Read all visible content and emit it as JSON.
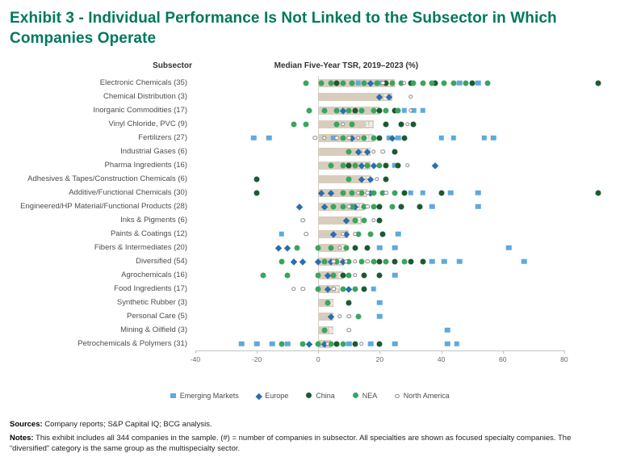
{
  "title": "Exhibit 3 - Individual Performance Is Not Linked to the Subsector in Which Companies Operate",
  "columns": {
    "subsector": "Subsector",
    "tsr": "Median Five-Year TSR, 2019–2023 (%)"
  },
  "colors": {
    "accent": "#00795C",
    "bar": "#D8CDBD",
    "axis": "#C4C4C4"
  },
  "chart_data": {
    "type": "scatter",
    "title": "Median Five-Year TSR, 2019–2023 (%)",
    "xlabel": "",
    "ylabel": "Subsector",
    "x_range": [
      -40,
      95
    ],
    "x_ticks": [
      -40,
      -20,
      0,
      20,
      40,
      60,
      80
    ],
    "grid": "zero-line-only",
    "legend_position": "bottom",
    "series_meta": [
      {
        "key": "em",
        "name": "Emerging Markets",
        "marker": "square",
        "color": "#5FA9DC"
      },
      {
        "key": "eu",
        "name": "Europe",
        "marker": "diamond",
        "color": "#2A6EAF"
      },
      {
        "key": "cn",
        "name": "China",
        "marker": "circle",
        "color": "#1C5A34"
      },
      {
        "key": "nea",
        "name": "NEA",
        "marker": "circle",
        "color": "#3AA55F"
      },
      {
        "key": "na",
        "name": "North America",
        "marker": "open-circle",
        "color": "#FFFFFF"
      }
    ],
    "rows": [
      {
        "label": "Electronic Chemicals (35)",
        "median": 25,
        "points": {
          "em": [
            13,
            20,
            46,
            52
          ],
          "eu": [
            17
          ],
          "cn": [
            6,
            22,
            30,
            38,
            50,
            91
          ],
          "nea": [
            -4,
            1,
            4,
            8,
            11,
            15,
            19,
            24,
            27,
            31,
            34,
            37,
            41,
            44,
            48,
            55
          ],
          "na": [
            21,
            28
          ]
        }
      },
      {
        "label": "Chemical Distribution (3)",
        "median": 24,
        "points": {
          "eu": [
            20,
            23
          ],
          "na": [
            30
          ]
        }
      },
      {
        "label": "Inorganic Commodities (17)",
        "median": 20,
        "points": {
          "em": [
            28,
            31,
            34
          ],
          "eu": [
            8
          ],
          "cn": [
            12,
            20,
            25
          ],
          "nea": [
            -3,
            2,
            6,
            10,
            14,
            18,
            22,
            26
          ],
          "na": [
            30
          ]
        }
      },
      {
        "label": "Vinyl Chloride, PVC (9)",
        "median": 18,
        "points": {
          "nea": [
            -8,
            -4,
            6,
            11
          ],
          "cn": [
            22,
            27,
            31
          ],
          "na": [
            8,
            29
          ]
        }
      },
      {
        "label": "Fertilizers (27)",
        "median": 18,
        "points": {
          "em": [
            -21,
            -16,
            5,
            23,
            26,
            40,
            44,
            54,
            57
          ],
          "eu": [
            11,
            24
          ],
          "cn": [
            20,
            28
          ],
          "nea": [
            8,
            15,
            18
          ],
          "na": [
            -1,
            2,
            6,
            10,
            13
          ]
        }
      },
      {
        "label": "Industrial Gases (6)",
        "median": 17,
        "points": {
          "eu": [
            13,
            16
          ],
          "cn": [
            25
          ],
          "nea": [
            10
          ],
          "na": [
            18,
            21
          ]
        }
      },
      {
        "label": "Pharma Ingredients (16)",
        "median": 17,
        "points": {
          "em": [
            25
          ],
          "eu": [
            14,
            18,
            38
          ],
          "cn": [
            10,
            22,
            26
          ],
          "nea": [
            4,
            8,
            12,
            16,
            20
          ],
          "na": [
            29
          ]
        }
      },
      {
        "label": "Adhesives & Tapes/Construction Chemicals (6)",
        "median": 17,
        "points": {
          "cn": [
            -20,
            22
          ],
          "eu": [
            14,
            17
          ],
          "nea": [
            10
          ],
          "na": [
            19
          ]
        }
      },
      {
        "label": "Additive/Functional Chemicals (30)",
        "median": 16,
        "points": {
          "em": [
            30,
            34,
            43,
            52
          ],
          "eu": [
            1,
            4,
            17
          ],
          "cn": [
            -20,
            28,
            40,
            91
          ],
          "nea": [
            8,
            11,
            14,
            18,
            21,
            25
          ],
          "na": [
            13,
            16,
            22
          ]
        }
      },
      {
        "label": "Engineered/HP Material/Functional Products (28)",
        "median": 15,
        "points": {
          "em": [
            37,
            52
          ],
          "eu": [
            -6,
            2,
            12
          ],
          "cn": [
            20,
            27,
            33
          ],
          "nea": [
            5,
            8,
            11,
            15,
            18,
            24
          ],
          "na": [
            10,
            16
          ]
        }
      },
      {
        "label": "Inks & Pigments (6)",
        "median": 14,
        "points": {
          "eu": [
            9
          ],
          "cn": [
            20
          ],
          "nea": [
            12,
            15
          ],
          "na": [
            -5,
            18
          ]
        }
      },
      {
        "label": "Paints & Coatings (12)",
        "median": 10,
        "points": {
          "em": [
            -12,
            26
          ],
          "eu": [
            5,
            9
          ],
          "cn": [
            21
          ],
          "nea": [
            13,
            17
          ],
          "na": [
            -4,
            8,
            12
          ]
        }
      },
      {
        "label": "Fibers & Intermediates (20)",
        "median": 9,
        "points": {
          "em": [
            20,
            25,
            62
          ],
          "eu": [
            -13,
            -10
          ],
          "cn": [
            12,
            16
          ],
          "nea": [
            -7,
            0,
            4,
            9
          ],
          "na": [
            7
          ]
        }
      },
      {
        "label": "Diversified (54)",
        "median": 8,
        "points": {
          "em": [
            37,
            41,
            46,
            67
          ],
          "eu": [
            -8,
            -5,
            0,
            4,
            8
          ],
          "cn": [
            20,
            25,
            30,
            34
          ],
          "nea": [
            -12,
            2,
            6,
            10,
            14,
            18,
            22,
            28
          ],
          "na": [
            5,
            9,
            12,
            16
          ]
        }
      },
      {
        "label": "Agrochemicals (16)",
        "median": 8,
        "points": {
          "em": [
            25
          ],
          "eu": [
            3
          ],
          "cn": [
            8,
            15,
            20
          ],
          "nea": [
            -18,
            -10,
            0,
            5,
            10
          ],
          "na": [
            12
          ]
        }
      },
      {
        "label": "Food Ingredients (17)",
        "median": 7,
        "points": {
          "em": [
            18
          ],
          "eu": [
            3,
            10
          ],
          "cn": [
            15
          ],
          "nea": [
            0,
            8,
            12
          ],
          "na": [
            -8,
            -5,
            5
          ]
        }
      },
      {
        "label": "Synthetic Rubber (3)",
        "median": 5,
        "points": {
          "em": [
            20
          ],
          "cn": [
            10
          ],
          "nea": [
            3
          ]
        }
      },
      {
        "label": "Personal Care (5)",
        "median": 5,
        "points": {
          "em": [
            20
          ],
          "eu": [
            4
          ],
          "nea": [
            13
          ],
          "na": [
            7,
            10
          ]
        }
      },
      {
        "label": "Mining & Oilfield (3)",
        "median": 5,
        "points": {
          "em": [
            42
          ],
          "nea": [
            2
          ],
          "na": [
            10
          ]
        }
      },
      {
        "label": "Petrochemicals & Polymers (31)",
        "median": 4,
        "points": {
          "em": [
            -25,
            -20,
            -15,
            -10,
            10,
            17,
            25,
            42,
            45
          ],
          "eu": [
            -3,
            2
          ],
          "cn": [
            6,
            12,
            20
          ],
          "nea": [
            -12,
            -5,
            0,
            4,
            8
          ],
          "na": [
            3,
            14
          ]
        }
      }
    ]
  },
  "footer": {
    "sources_label": "Sources:",
    "sources_text": " Company reports; S&P Capital IQ; BCG analysis.",
    "notes_label": "Notes:",
    "notes_text": " This exhibit includes all 344 companies in the sample. (#) = number of companies in subsector. All specialties are shown as focused specialty companies. The “diversified” category is the same group as the multispecialty sector."
  }
}
